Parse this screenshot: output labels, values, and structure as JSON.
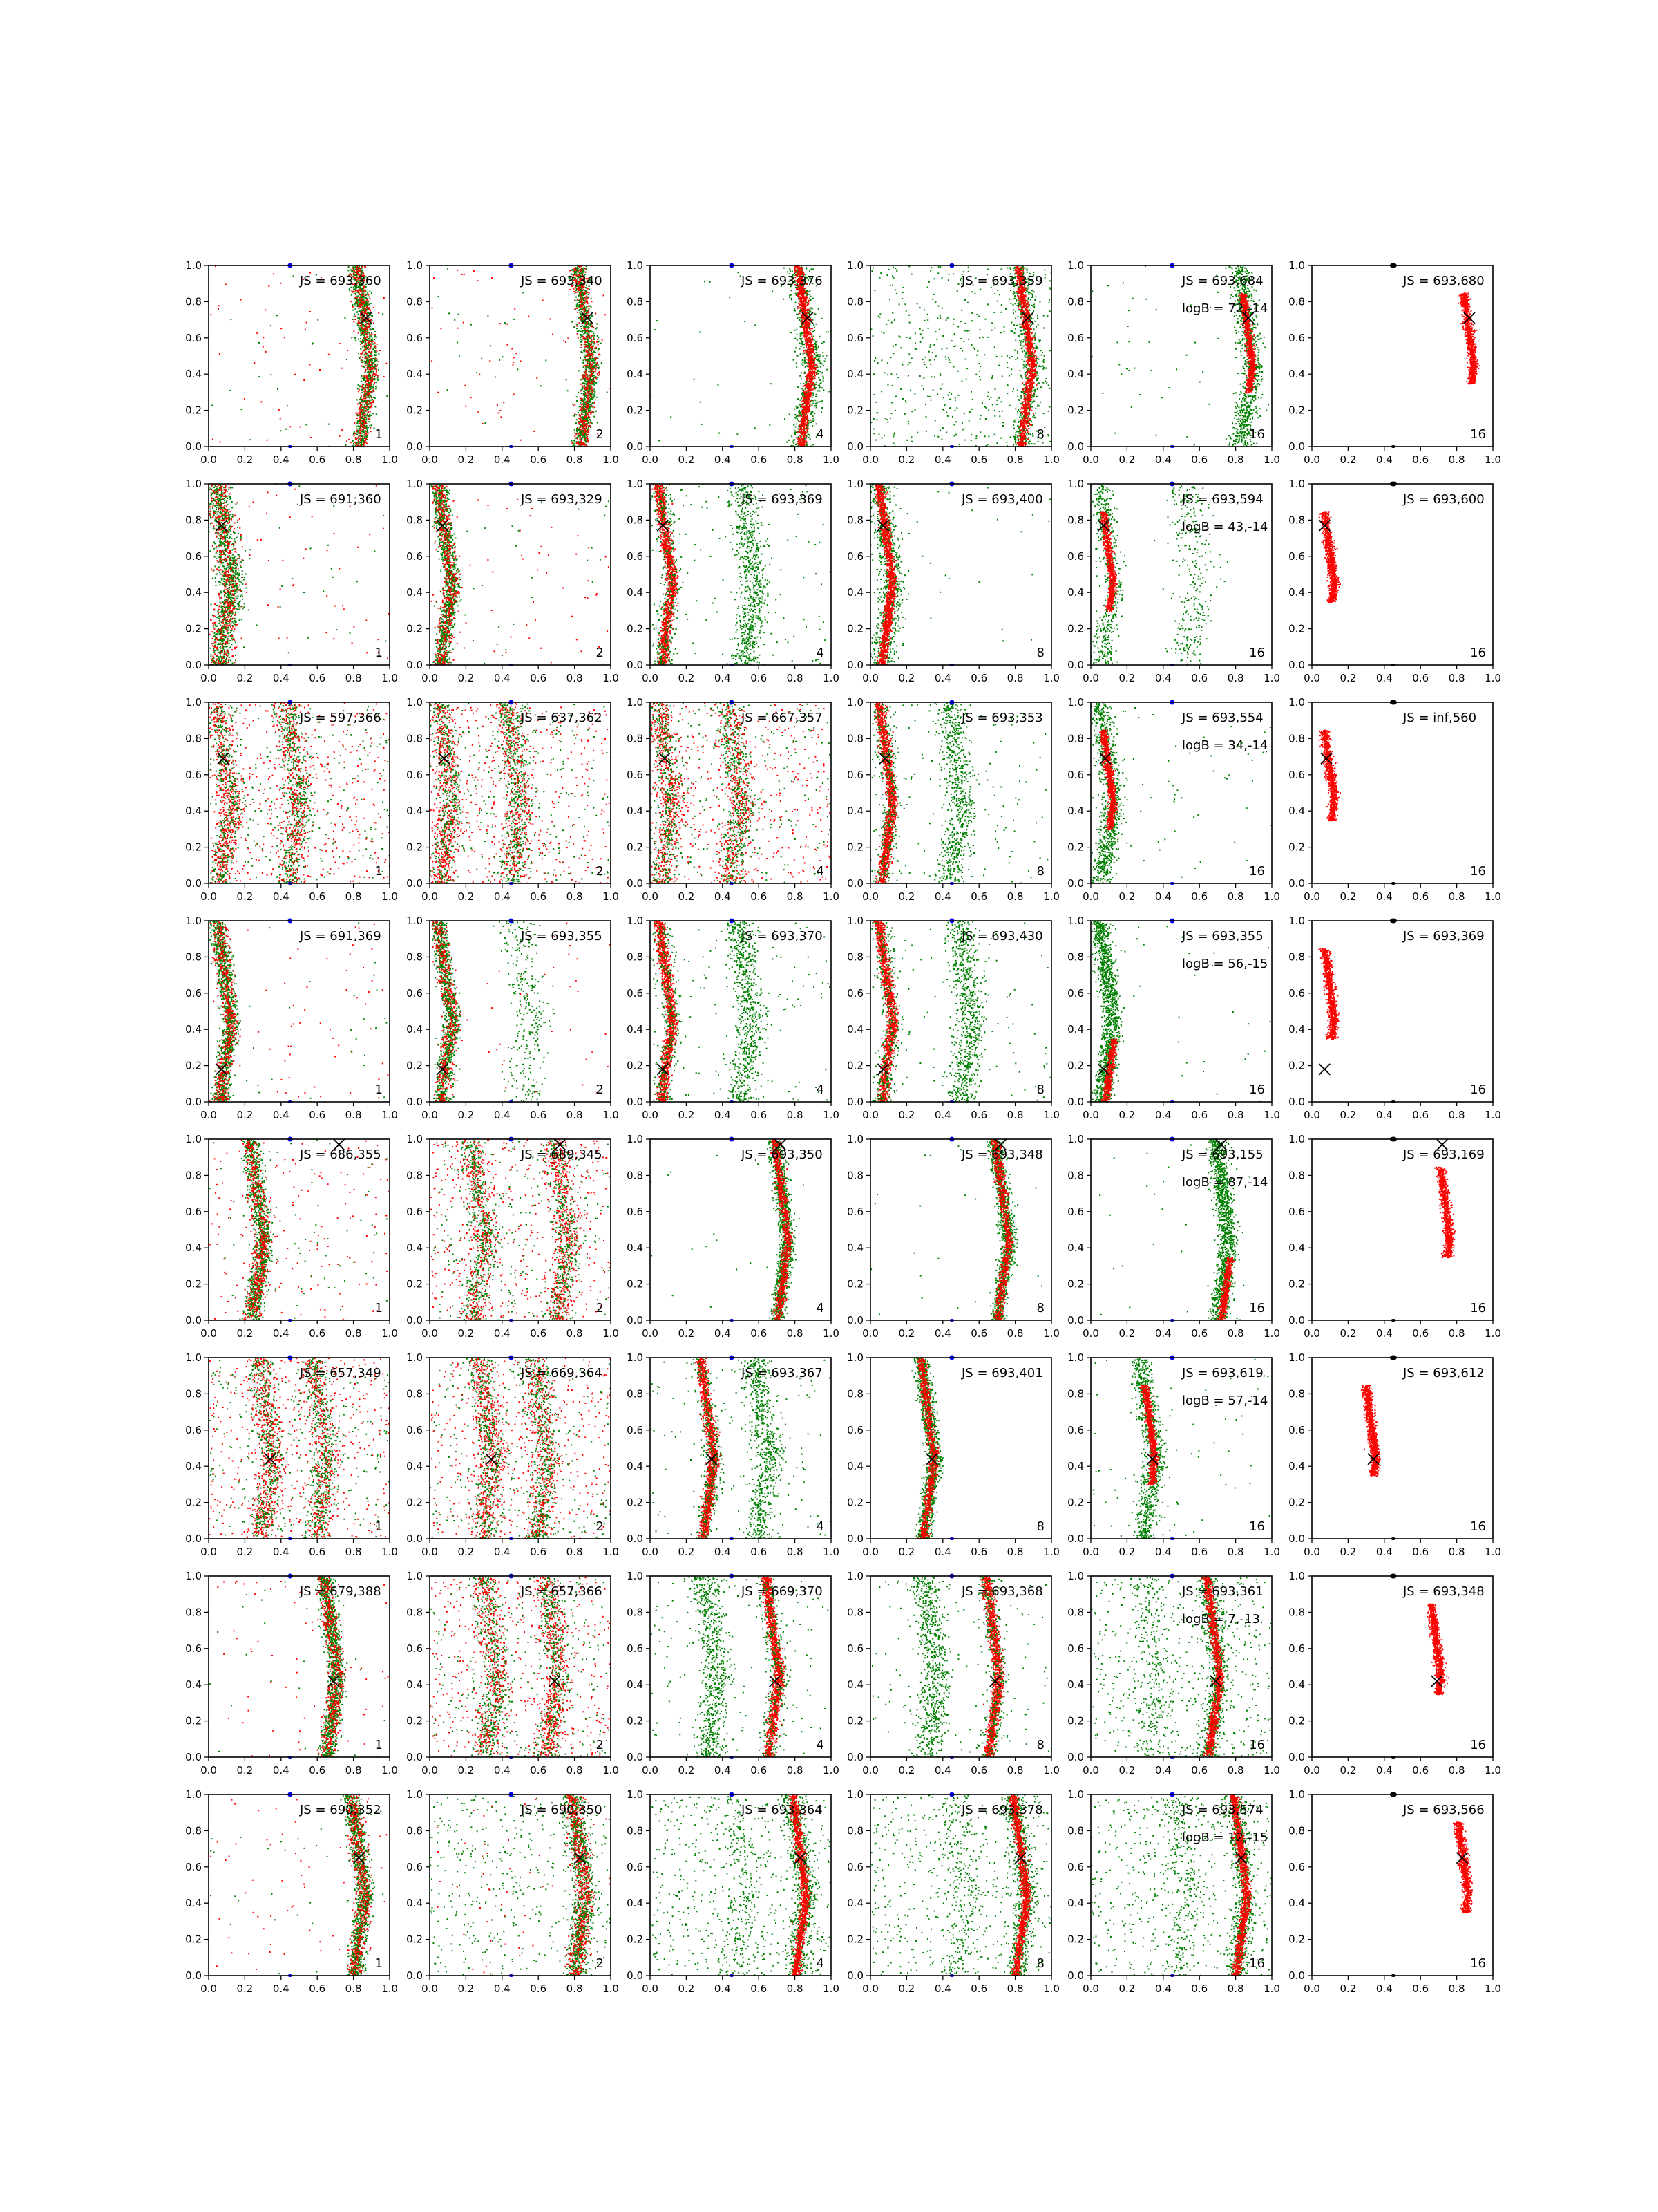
{
  "figure": {
    "rows": 8,
    "cols": 6,
    "tick_labels": [
      "0.0",
      "0.2",
      "0.4",
      "0.6",
      "0.8",
      "1.0"
    ],
    "colors": {
      "red": "#ff0000",
      "green": "#008000",
      "blue": "#0000ff",
      "black": "#000000"
    }
  },
  "chart_data": [
    {
      "row": 1,
      "type": "scatter",
      "xlim": [
        0,
        1
      ],
      "ylim": [
        0,
        1
      ],
      "grid": false,
      "ridge_x": 0.86,
      "alt_ridge_x": null,
      "marker": [
        0.87,
        0.71
      ],
      "panels": [
        {
          "js": "JS = 693,360",
          "logb": "",
          "label": "1",
          "mode": "mixed"
        },
        {
          "js": "JS = 693,340",
          "logb": "",
          "label": "2",
          "mode": "mixed"
        },
        {
          "js": "JS = 693,376",
          "logb": "",
          "label": "4",
          "mode": "red_core_green_halo"
        },
        {
          "js": "JS = 693,359",
          "logb": "",
          "label": "8",
          "mode": "red_core_green_cloud"
        },
        {
          "js": "JS = 693,684",
          "logb": "logB = 72,-14",
          "label": "16",
          "mode": "red_core_green_halo_partial"
        },
        {
          "js": "JS = 693,680",
          "logb": "",
          "label": "16",
          "mode": "red_partial"
        }
      ]
    },
    {
      "row": 2,
      "type": "scatter",
      "xlim": [
        0,
        1
      ],
      "ylim": [
        0,
        1
      ],
      "grid": false,
      "ridge_x": 0.09,
      "alt_ridge_x": 0.55,
      "marker": [
        0.07,
        0.77
      ],
      "panels": [
        {
          "js": "JS = 691,360",
          "logb": "",
          "label": "1",
          "mode": "mixed_wide"
        },
        {
          "js": "JS = 693,329",
          "logb": "",
          "label": "2",
          "mode": "mixed"
        },
        {
          "js": "JS = 693,369",
          "logb": "",
          "label": "4",
          "mode": "red_core_green_alt"
        },
        {
          "js": "JS = 693,400",
          "logb": "",
          "label": "8",
          "mode": "red_core_green_halo"
        },
        {
          "js": "JS = 693,594",
          "logb": "logB = 43,-14",
          "label": "16",
          "mode": "red_core_green_alt_partial"
        },
        {
          "js": "JS = 693,600",
          "logb": "",
          "label": "16",
          "mode": "red_partial"
        }
      ]
    },
    {
      "row": 3,
      "type": "scatter",
      "xlim": [
        0,
        1
      ],
      "ylim": [
        0,
        1
      ],
      "grid": false,
      "ridge_x": 0.09,
      "alt_ridge_x": 0.47,
      "marker": [
        0.08,
        0.69
      ],
      "panels": [
        {
          "js": "JS = 597,366",
          "logb": "",
          "label": "1",
          "mode": "noisy_alt_green"
        },
        {
          "js": "JS = 637,362",
          "logb": "",
          "label": "2",
          "mode": "noisy_mixed"
        },
        {
          "js": "JS = 667,357",
          "logb": "",
          "label": "4",
          "mode": "noisy_mixed"
        },
        {
          "js": "JS = 693,353",
          "logb": "",
          "label": "8",
          "mode": "red_core_green_alt"
        },
        {
          "js": "JS = 693,554",
          "logb": "logB = 34,-14",
          "label": "16",
          "mode": "red_core_green_halo_partial"
        },
        {
          "js": "JS = inf,560",
          "logb": "",
          "label": "16",
          "mode": "red_partial"
        }
      ]
    },
    {
      "row": 4,
      "type": "scatter",
      "xlim": [
        0,
        1
      ],
      "ylim": [
        0,
        1
      ],
      "grid": false,
      "ridge_x": 0.09,
      "alt_ridge_x": 0.53,
      "marker": [
        0.07,
        0.18
      ],
      "panels": [
        {
          "js": "JS = 691,369",
          "logb": "",
          "label": "1",
          "mode": "mixed"
        },
        {
          "js": "JS = 693,355",
          "logb": "",
          "label": "2",
          "mode": "mixed_green_alt"
        },
        {
          "js": "JS = 693,370",
          "logb": "",
          "label": "4",
          "mode": "red_core_green_alt"
        },
        {
          "js": "JS = 693,430",
          "logb": "",
          "label": "8",
          "mode": "red_core_green_alt"
        },
        {
          "js": "JS = 693,355",
          "logb": "logB = 56,-15",
          "label": "16",
          "mode": "green_core_red_partial"
        },
        {
          "js": "JS = 693,369",
          "logb": "",
          "label": "16",
          "mode": "red_partial"
        }
      ]
    },
    {
      "row": 5,
      "type": "scatter",
      "xlim": [
        0,
        1
      ],
      "ylim": [
        0,
        1
      ],
      "grid": false,
      "ridge_x": 0.73,
      "alt_ridge_x": 0.27,
      "marker": [
        0.72,
        0.97
      ],
      "panels": [
        {
          "js": "JS = 686,355",
          "logb": "",
          "label": "1",
          "mode": "mixed_on_alt"
        },
        {
          "js": "JS = 689,345",
          "logb": "",
          "label": "2",
          "mode": "noisy_mixed"
        },
        {
          "js": "JS = 693,350",
          "logb": "",
          "label": "4",
          "mode": "green_core_red_inner"
        },
        {
          "js": "JS = 693,348",
          "logb": "",
          "label": "8",
          "mode": "green_core_red_inner"
        },
        {
          "js": "JS = 693,155",
          "logb": "logB = 87,-14",
          "label": "16",
          "mode": "green_core_red_partial"
        },
        {
          "js": "JS = 693,169",
          "logb": "",
          "label": "16",
          "mode": "red_partial"
        }
      ]
    },
    {
      "row": 6,
      "type": "scatter",
      "xlim": [
        0,
        1
      ],
      "ylim": [
        0,
        1
      ],
      "grid": false,
      "ridge_x": 0.32,
      "alt_ridge_x": 0.62,
      "marker": [
        0.34,
        0.44
      ],
      "panels": [
        {
          "js": "JS = 657,349",
          "logb": "",
          "label": "1",
          "mode": "noisy_mixed_wide"
        },
        {
          "js": "JS = 669,364",
          "logb": "",
          "label": "2",
          "mode": "noisy_mixed"
        },
        {
          "js": "JS = 693,367",
          "logb": "",
          "label": "4",
          "mode": "red_core_green_alt"
        },
        {
          "js": "JS = 693,401",
          "logb": "",
          "label": "8",
          "mode": "green_core_red_inner"
        },
        {
          "js": "JS = 693,619",
          "logb": "logB = 57,-14",
          "label": "16",
          "mode": "red_core_green_halo_partial"
        },
        {
          "js": "JS = 693,612",
          "logb": "",
          "label": "16",
          "mode": "red_partial"
        }
      ]
    },
    {
      "row": 7,
      "type": "scatter",
      "xlim": [
        0,
        1
      ],
      "ylim": [
        0,
        1
      ],
      "grid": false,
      "ridge_x": 0.68,
      "alt_ridge_x": 0.34,
      "marker": [
        0.69,
        0.42
      ],
      "panels": [
        {
          "js": "JS = 679,388",
          "logb": "",
          "label": "1",
          "mode": "mixed"
        },
        {
          "js": "JS = 657,366",
          "logb": "",
          "label": "2",
          "mode": "noisy_mixed_wide"
        },
        {
          "js": "JS = 669,370",
          "logb": "",
          "label": "4",
          "mode": "red_core_green_alt"
        },
        {
          "js": "JS = 693,368",
          "logb": "",
          "label": "8",
          "mode": "red_core_green_alt"
        },
        {
          "js": "JS = 693,361",
          "logb": "logB = 7,-13",
          "label": "16",
          "mode": "red_core_green_cloud"
        },
        {
          "js": "JS = 693,348",
          "logb": "",
          "label": "16",
          "mode": "red_partial"
        }
      ]
    },
    {
      "row": 8,
      "type": "scatter",
      "xlim": [
        0,
        1
      ],
      "ylim": [
        0,
        1
      ],
      "grid": false,
      "ridge_x": 0.83,
      "alt_ridge_x": 0.5,
      "marker": [
        0.83,
        0.65
      ],
      "panels": [
        {
          "js": "JS = 690,352",
          "logb": "",
          "label": "1",
          "mode": "mixed"
        },
        {
          "js": "JS = 690,350",
          "logb": "",
          "label": "2",
          "mode": "mixed_green_cloud"
        },
        {
          "js": "JS = 693,364",
          "logb": "",
          "label": "4",
          "mode": "red_core_green_cloud"
        },
        {
          "js": "JS = 693,378",
          "logb": "",
          "label": "8",
          "mode": "red_core_green_cloud"
        },
        {
          "js": "JS = 693,574",
          "logb": "logB = 12,-15",
          "label": "16",
          "mode": "red_core_green_cloud"
        },
        {
          "js": "JS = 693,566",
          "logb": "",
          "label": "16",
          "mode": "red_partial"
        }
      ]
    }
  ]
}
